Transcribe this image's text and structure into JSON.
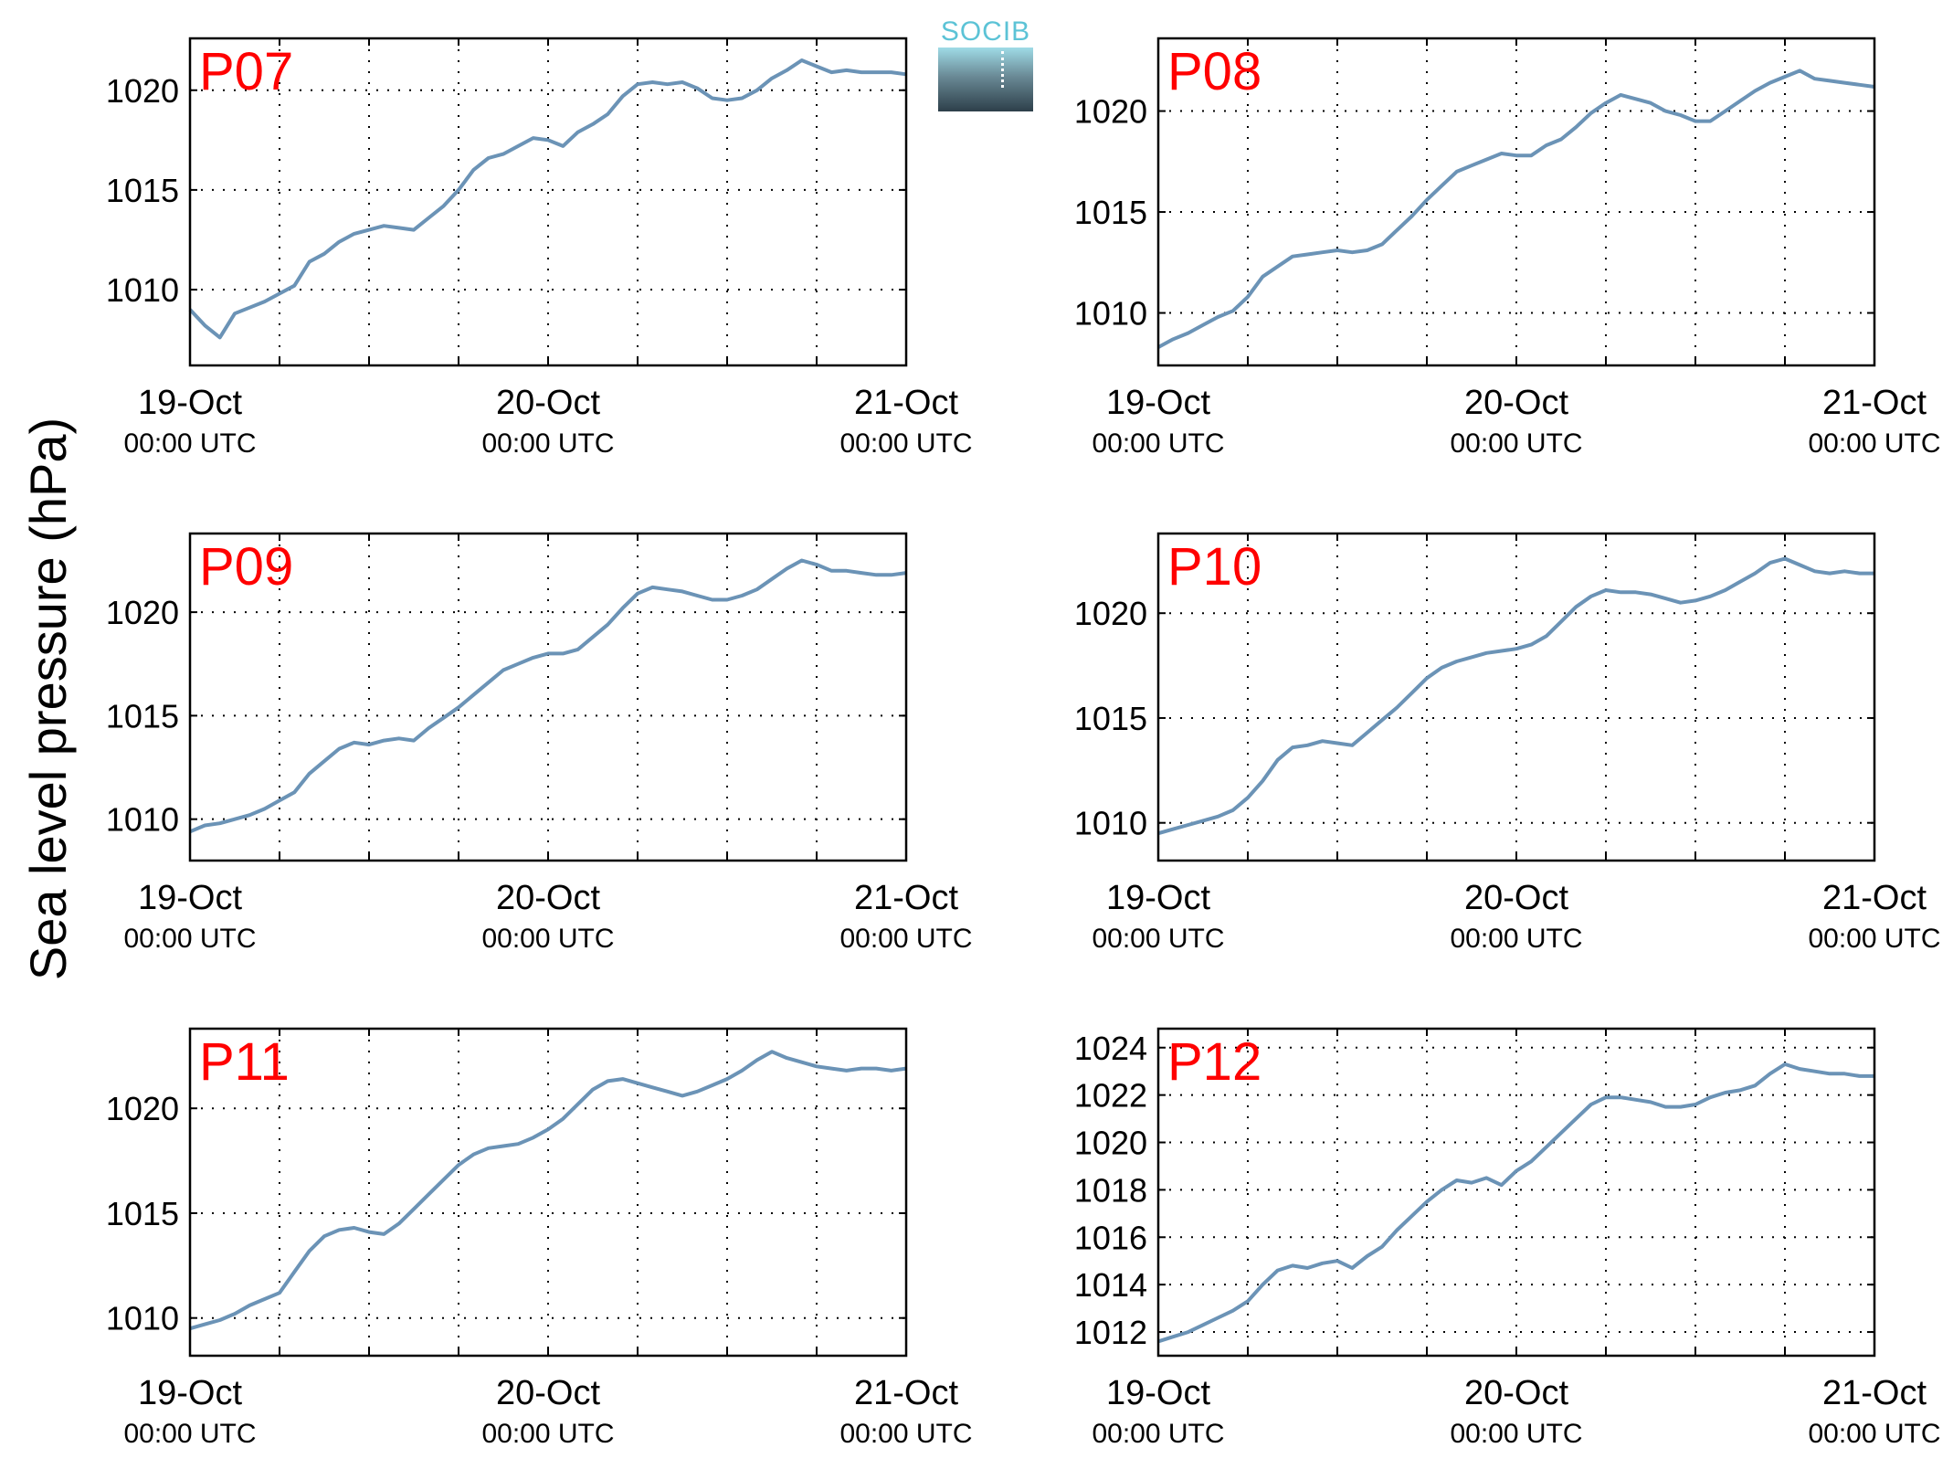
{
  "figure": {
    "ylabel": "Sea level pressure (hPa)",
    "logo_text": "SOCIB",
    "colors": {
      "line": "#6b93b6",
      "panel_label": "#ff0000",
      "axes": "#000000",
      "grid": "#000000"
    }
  },
  "chart_data": [
    {
      "type": "line",
      "title": "P07",
      "x_ticks": [
        {
          "date": "19-Oct",
          "time": "00:00 UTC"
        },
        {
          "date": "20-Oct",
          "time": "00:00 UTC"
        },
        {
          "date": "21-Oct",
          "time": "00:00 UTC"
        }
      ],
      "x_hours": [
        0,
        6,
        12,
        18,
        24,
        30,
        36,
        42,
        48
      ],
      "xlim_hours": [
        0,
        48
      ],
      "ylim": [
        1006.2,
        1022.6
      ],
      "yticks": [
        1010,
        1015,
        1020
      ],
      "grid": true,
      "x": [
        0,
        1,
        2,
        3,
        4,
        5,
        6,
        7,
        8,
        9,
        10,
        11,
        12,
        13,
        14,
        15,
        16,
        17,
        18,
        19,
        20,
        21,
        22,
        23,
        24,
        25,
        26,
        27,
        28,
        29,
        30,
        31,
        32,
        33,
        34,
        35,
        36,
        37,
        38,
        39,
        40,
        41,
        42,
        43,
        44,
        45,
        46,
        47,
        48
      ],
      "y": [
        1009,
        1008.2,
        1007.6,
        1008.8,
        1009.1,
        1009.4,
        1009.8,
        1010.2,
        1011.4,
        1011.8,
        1012.4,
        1012.8,
        1013.0,
        1013.2,
        1013.1,
        1013.0,
        1013.6,
        1014.2,
        1015.0,
        1016.0,
        1016.6,
        1016.8,
        1017.2,
        1017.6,
        1017.5,
        1017.2,
        1017.9,
        1018.3,
        1018.8,
        1019.7,
        1020.3,
        1020.4,
        1020.3,
        1020.4,
        1020.1,
        1019.6,
        1019.5,
        1019.6,
        1020.0,
        1020.6,
        1021.0,
        1021.5,
        1021.2,
        1020.9,
        1021.0,
        1020.9,
        1020.9,
        1020.9,
        1020.8
      ]
    },
    {
      "type": "line",
      "title": "P08",
      "x_ticks": [
        {
          "date": "19-Oct",
          "time": "00:00 UTC"
        },
        {
          "date": "20-Oct",
          "time": "00:00 UTC"
        },
        {
          "date": "21-Oct",
          "time": "00:00 UTC"
        }
      ],
      "x_hours": [
        0,
        6,
        12,
        18,
        24,
        30,
        36,
        42,
        48
      ],
      "xlim_hours": [
        0,
        48
      ],
      "ylim": [
        1007.4,
        1023.6
      ],
      "yticks": [
        1010,
        1015,
        1020
      ],
      "grid": true,
      "x": [
        0,
        1,
        2,
        3,
        4,
        5,
        6,
        7,
        8,
        9,
        10,
        11,
        12,
        13,
        14,
        15,
        16,
        17,
        18,
        19,
        20,
        21,
        22,
        23,
        24,
        25,
        26,
        27,
        28,
        29,
        30,
        31,
        32,
        33,
        34,
        35,
        36,
        37,
        38,
        39,
        40,
        41,
        42,
        43,
        44,
        45,
        46,
        47,
        48
      ],
      "y": [
        1008.3,
        1008.7,
        1009.0,
        1009.4,
        1009.8,
        1010.1,
        1010.8,
        1011.8,
        1012.3,
        1012.8,
        1012.9,
        1013.0,
        1013.1,
        1013.0,
        1013.1,
        1013.4,
        1014.1,
        1014.8,
        1015.6,
        1016.3,
        1017.0,
        1017.3,
        1017.6,
        1017.9,
        1017.8,
        1017.8,
        1018.3,
        1018.6,
        1019.2,
        1019.9,
        1020.4,
        1020.8,
        1020.6,
        1020.4,
        1020.0,
        1019.8,
        1019.5,
        1019.5,
        1020.0,
        1020.5,
        1021.0,
        1021.4,
        1021.7,
        1022.0,
        1021.6,
        1021.5,
        1021.4,
        1021.3,
        1021.2
      ]
    },
    {
      "type": "line",
      "title": "P09",
      "x_ticks": [
        {
          "date": "19-Oct",
          "time": "00:00 UTC"
        },
        {
          "date": "20-Oct",
          "time": "00:00 UTC"
        },
        {
          "date": "21-Oct",
          "time": "00:00 UTC"
        }
      ],
      "x_hours": [
        0,
        6,
        12,
        18,
        24,
        30,
        36,
        42,
        48
      ],
      "xlim_hours": [
        0,
        48
      ],
      "ylim": [
        1008.0,
        1023.8
      ],
      "yticks": [
        1010,
        1015,
        1020
      ],
      "grid": true,
      "x": [
        0,
        1,
        2,
        3,
        4,
        5,
        6,
        7,
        8,
        9,
        10,
        11,
        12,
        13,
        14,
        15,
        16,
        17,
        18,
        19,
        20,
        21,
        22,
        23,
        24,
        25,
        26,
        27,
        28,
        29,
        30,
        31,
        32,
        33,
        34,
        35,
        36,
        37,
        38,
        39,
        40,
        41,
        42,
        43,
        44,
        45,
        46,
        47,
        48
      ],
      "y": [
        1009.4,
        1009.7,
        1009.8,
        1010.0,
        1010.2,
        1010.5,
        1010.9,
        1011.3,
        1012.2,
        1012.8,
        1013.4,
        1013.7,
        1013.6,
        1013.8,
        1013.9,
        1013.8,
        1014.4,
        1014.9,
        1015.4,
        1016.0,
        1016.6,
        1017.2,
        1017.5,
        1017.8,
        1018.0,
        1018.0,
        1018.2,
        1018.8,
        1019.4,
        1020.2,
        1020.9,
        1021.2,
        1021.1,
        1021.0,
        1020.8,
        1020.6,
        1020.6,
        1020.8,
        1021.1,
        1021.6,
        1022.1,
        1022.5,
        1022.3,
        1022.0,
        1022.0,
        1021.9,
        1021.8,
        1021.8,
        1021.9
      ]
    },
    {
      "type": "line",
      "title": "P10",
      "x_ticks": [
        {
          "date": "19-Oct",
          "time": "00:00 UTC"
        },
        {
          "date": "20-Oct",
          "time": "00:00 UTC"
        },
        {
          "date": "21-Oct",
          "time": "00:00 UTC"
        }
      ],
      "x_hours": [
        0,
        6,
        12,
        18,
        24,
        30,
        36,
        42,
        48
      ],
      "xlim_hours": [
        0,
        48
      ],
      "ylim": [
        1008.2,
        1023.8
      ],
      "yticks": [
        1010,
        1015,
        1020
      ],
      "grid": true,
      "x": [
        0,
        1,
        2,
        3,
        4,
        5,
        6,
        7,
        8,
        9,
        10,
        11,
        12,
        13,
        14,
        15,
        16,
        17,
        18,
        19,
        20,
        21,
        22,
        23,
        24,
        25,
        26,
        27,
        28,
        29,
        30,
        31,
        32,
        33,
        34,
        35,
        36,
        37,
        38,
        39,
        40,
        41,
        42,
        43,
        44,
        45,
        46,
        47,
        48
      ],
      "y": [
        1009.5,
        1009.7,
        1009.9,
        1010.1,
        1010.3,
        1010.6,
        1011.2,
        1012.0,
        1013.0,
        1013.6,
        1013.7,
        1013.9,
        1013.8,
        1013.7,
        1014.3,
        1014.9,
        1015.5,
        1016.2,
        1016.9,
        1017.4,
        1017.7,
        1017.9,
        1018.1,
        1018.2,
        1018.3,
        1018.5,
        1018.9,
        1019.6,
        1020.3,
        1020.8,
        1021.1,
        1021.0,
        1021.0,
        1020.9,
        1020.7,
        1020.5,
        1020.6,
        1020.8,
        1021.1,
        1021.5,
        1021.9,
        1022.4,
        1022.6,
        1022.3,
        1022.0,
        1021.9,
        1022.0,
        1021.9,
        1021.9
      ]
    },
    {
      "type": "line",
      "title": "P11",
      "x_ticks": [
        {
          "date": "19-Oct",
          "time": "00:00 UTC"
        },
        {
          "date": "20-Oct",
          "time": "00:00 UTC"
        },
        {
          "date": "21-Oct",
          "time": "00:00 UTC"
        }
      ],
      "x_hours": [
        0,
        6,
        12,
        18,
        24,
        30,
        36,
        42,
        48
      ],
      "xlim_hours": [
        0,
        48
      ],
      "ylim": [
        1008.2,
        1023.8
      ],
      "yticks": [
        1010,
        1015,
        1020
      ],
      "grid": true,
      "x": [
        0,
        1,
        2,
        3,
        4,
        5,
        6,
        7,
        8,
        9,
        10,
        11,
        12,
        13,
        14,
        15,
        16,
        17,
        18,
        19,
        20,
        21,
        22,
        23,
        24,
        25,
        26,
        27,
        28,
        29,
        30,
        31,
        32,
        33,
        34,
        35,
        36,
        37,
        38,
        39,
        40,
        41,
        42,
        43,
        44,
        45,
        46,
        47,
        48
      ],
      "y": [
        1009.5,
        1009.7,
        1009.9,
        1010.2,
        1010.6,
        1010.9,
        1011.2,
        1012.2,
        1013.2,
        1013.9,
        1014.2,
        1014.3,
        1014.1,
        1014.0,
        1014.5,
        1015.2,
        1015.9,
        1016.6,
        1017.3,
        1017.8,
        1018.1,
        1018.2,
        1018.3,
        1018.6,
        1019.0,
        1019.5,
        1020.2,
        1020.9,
        1021.3,
        1021.4,
        1021.2,
        1021.0,
        1020.8,
        1020.6,
        1020.8,
        1021.1,
        1021.4,
        1021.8,
        1022.3,
        1022.7,
        1022.4,
        1022.2,
        1022.0,
        1021.9,
        1021.8,
        1021.9,
        1021.9,
        1021.8,
        1021.9
      ]
    },
    {
      "type": "line",
      "title": "P12",
      "x_ticks": [
        {
          "date": "19-Oct",
          "time": "00:00 UTC"
        },
        {
          "date": "20-Oct",
          "time": "00:00 UTC"
        },
        {
          "date": "21-Oct",
          "time": "00:00 UTC"
        }
      ],
      "x_hours": [
        0,
        6,
        12,
        18,
        24,
        30,
        36,
        42,
        48
      ],
      "xlim_hours": [
        0,
        48
      ],
      "ylim": [
        1011.0,
        1024.8
      ],
      "yticks": [
        1012,
        1014,
        1016,
        1018,
        1020,
        1022,
        1024
      ],
      "grid": true,
      "x": [
        0,
        1,
        2,
        3,
        4,
        5,
        6,
        7,
        8,
        9,
        10,
        11,
        12,
        13,
        14,
        15,
        16,
        17,
        18,
        19,
        20,
        21,
        22,
        23,
        24,
        25,
        26,
        27,
        28,
        29,
        30,
        31,
        32,
        33,
        34,
        35,
        36,
        37,
        38,
        39,
        40,
        41,
        42,
        43,
        44,
        45,
        46,
        47,
        48
      ],
      "y": [
        1011.6,
        1011.8,
        1012.0,
        1012.3,
        1012.6,
        1012.9,
        1013.3,
        1014.0,
        1014.6,
        1014.8,
        1014.7,
        1014.9,
        1015.0,
        1014.7,
        1015.2,
        1015.6,
        1016.3,
        1016.9,
        1017.5,
        1018.0,
        1018.4,
        1018.3,
        1018.5,
        1018.2,
        1018.8,
        1019.2,
        1019.8,
        1020.4,
        1021.0,
        1021.6,
        1021.9,
        1021.9,
        1021.8,
        1021.7,
        1021.5,
        1021.5,
        1021.6,
        1021.9,
        1022.1,
        1022.2,
        1022.4,
        1022.9,
        1023.3,
        1023.1,
        1023.0,
        1022.9,
        1022.9,
        1022.8,
        1022.8
      ]
    }
  ]
}
